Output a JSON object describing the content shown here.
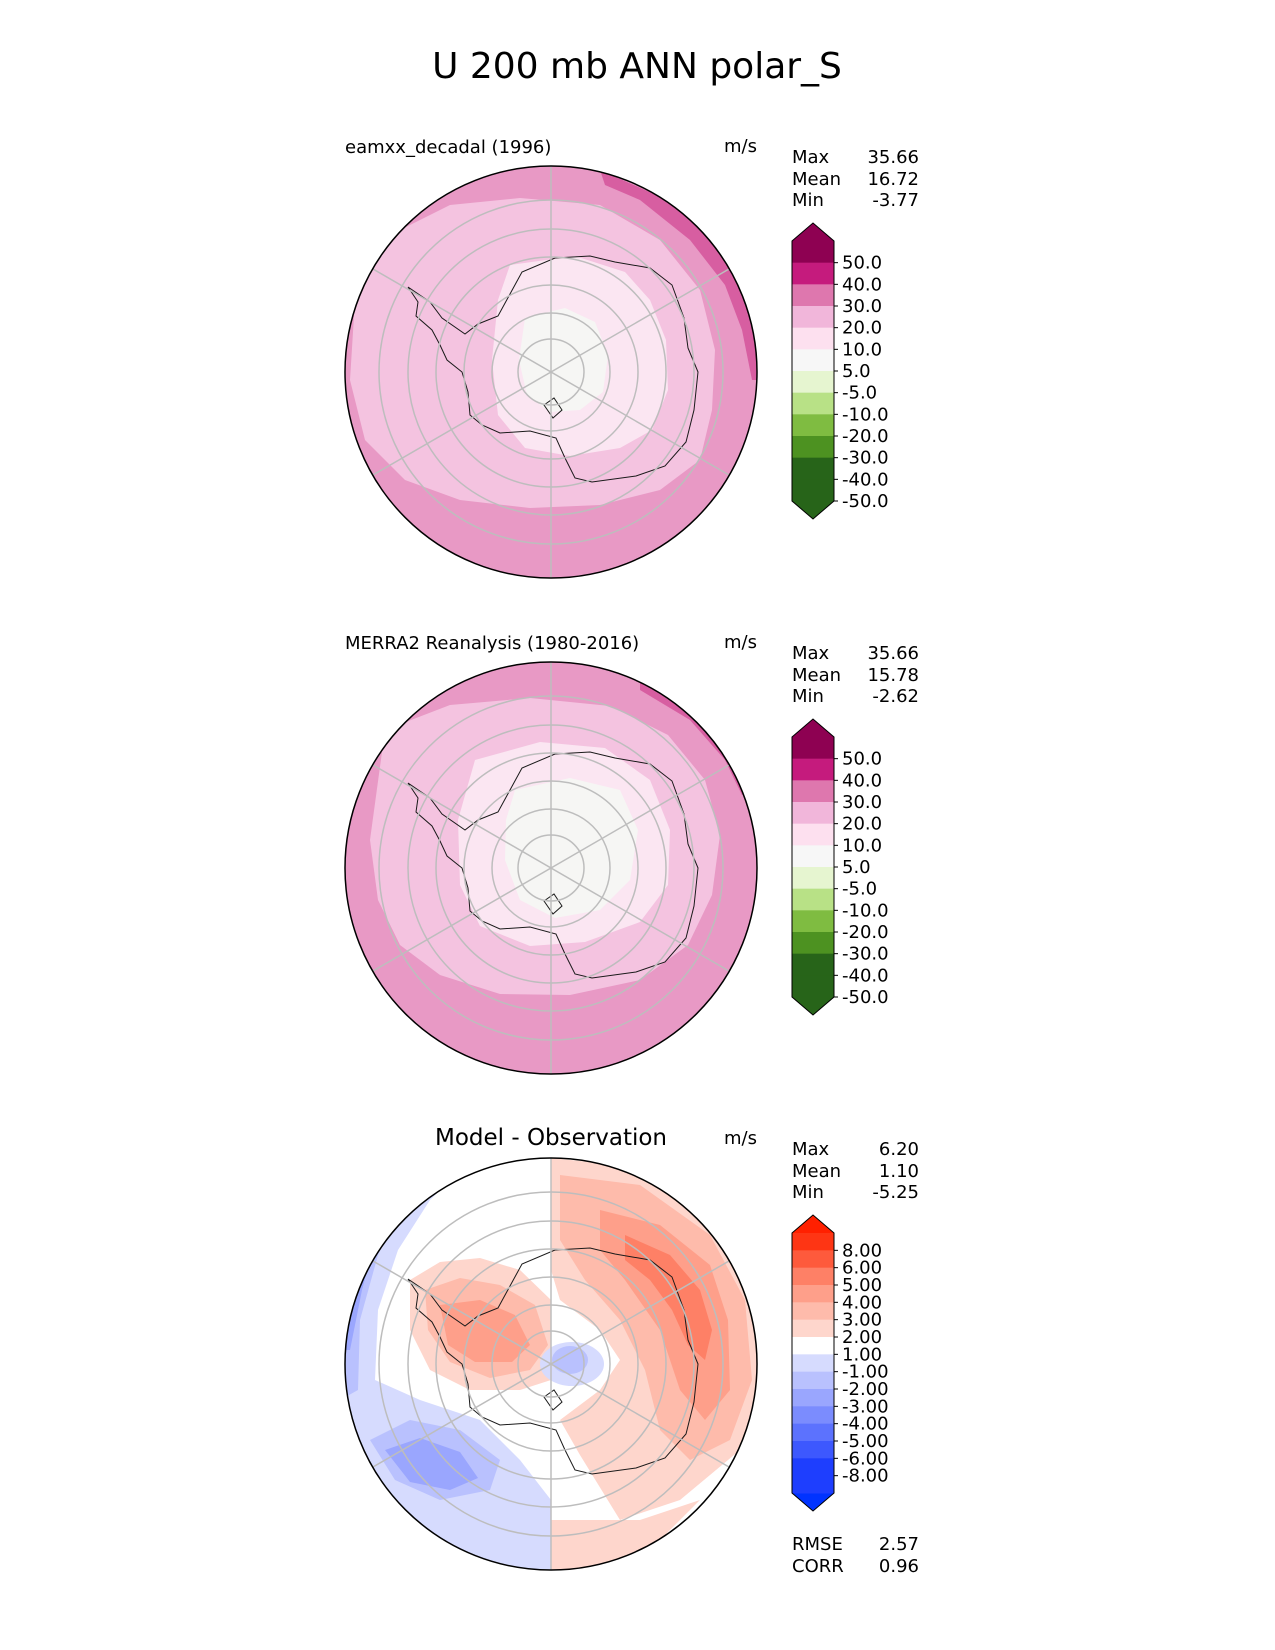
{
  "title": "U 200 mb ANN polar_S",
  "chart_data": [
    {
      "type": "heatmap",
      "projection": "south polar stereographic",
      "label": "eamxx_decadal (1996)",
      "units": "m/s",
      "stats": {
        "max_label": "Max",
        "max": "35.66",
        "mean_label": "Mean",
        "mean": "16.72",
        "min_label": "Min",
        "min": "-3.77"
      },
      "colorbar": {
        "levels": [
          "50.0",
          "40.0",
          "30.0",
          "20.0",
          "10.0",
          "5.0",
          "-5.0",
          "-10.0",
          "-20.0",
          "-30.0",
          "-40.0",
          "-50.0"
        ],
        "colors": [
          "#8e0152",
          "#c51b7d",
          "#de77ae",
          "#f1b6da",
          "#fde0ef",
          "#f7f7f7",
          "#e6f5d0",
          "#b8e186",
          "#7fbc41",
          "#4d9221",
          "#276419",
          "#276419"
        ],
        "over": "#8e0152",
        "under": "#276419"
      },
      "fields": [
        {
          "level_range": "20.0 to 30.0",
          "color": "#e899c5"
        },
        {
          "level_range": "30.0 to 40.0",
          "color": "#d75ea1"
        },
        {
          "level_range": "10.0 to 20.0",
          "color": "#f4c3e0"
        },
        {
          "level_range": "5.0 to 10.0",
          "color": "#fbe6f2"
        },
        {
          "level_range": "-5.0 to 5.0",
          "color": "#f6f6f4"
        }
      ]
    },
    {
      "type": "heatmap",
      "projection": "south polar stereographic",
      "label": "MERRA2 Reanalysis (1980-2016)",
      "units": "m/s",
      "stats": {
        "max_label": "Max",
        "max": "35.66",
        "mean_label": "Mean",
        "mean": "15.78",
        "min_label": "Min",
        "min": "-2.62"
      },
      "colorbar": {
        "levels": [
          "50.0",
          "40.0",
          "30.0",
          "20.0",
          "10.0",
          "5.0",
          "-5.0",
          "-10.0",
          "-20.0",
          "-30.0",
          "-40.0",
          "-50.0"
        ],
        "colors": [
          "#8e0152",
          "#c51b7d",
          "#de77ae",
          "#f1b6da",
          "#fde0ef",
          "#f7f7f7",
          "#e6f5d0",
          "#b8e186",
          "#7fbc41",
          "#4d9221",
          "#276419",
          "#276419"
        ],
        "over": "#8e0152",
        "under": "#276419"
      },
      "fields": [
        {
          "level_range": "20.0 to 30.0",
          "color": "#e899c5"
        },
        {
          "level_range": "30.0 to 40.0",
          "color": "#d75ea1"
        },
        {
          "level_range": "10.0 to 20.0",
          "color": "#f4c3e0"
        },
        {
          "level_range": "5.0 to 10.0",
          "color": "#fbe6f2"
        },
        {
          "level_range": "-5.0 to 5.0",
          "color": "#f6f6f4"
        }
      ]
    },
    {
      "type": "heatmap",
      "projection": "south polar stereographic",
      "label": "Model - Observation",
      "units": "m/s",
      "stats": {
        "max_label": "Max",
        "max": "6.20",
        "mean_label": "Mean",
        "mean": "1.10",
        "min_label": "Min",
        "min": "-5.25"
      },
      "extra_stats": {
        "rmse_label": "RMSE",
        "rmse": "2.57",
        "corr_label": "CORR",
        "corr": "0.96"
      },
      "colorbar": {
        "levels": [
          "8.00",
          "6.00",
          "5.00",
          "4.00",
          "3.00",
          "2.00",
          "1.00",
          "-1.00",
          "-2.00",
          "-3.00",
          "-4.00",
          "-5.00",
          "-6.00",
          "-8.00"
        ],
        "colors": [
          "#fe3514",
          "#fe5a3c",
          "#fe8066",
          "#fe9f8a",
          "#febbab",
          "#fed6cc",
          "#ffffff",
          "#d6dbfe",
          "#b9c1fe",
          "#9aa6fe",
          "#7b8cfe",
          "#5c72fe",
          "#3d58fe",
          "#1e3efe",
          "#1e3efe"
        ],
        "over": "#ff2000",
        "under": "#0033ff"
      },
      "fields": [
        {
          "level_range": "-1.00 to 1.00",
          "color": "#ffffff"
        },
        {
          "level_range": "1.00 to 2.00",
          "color": "#fed6cc"
        },
        {
          "level_range": "2.00 to 3.00",
          "color": "#febbab"
        },
        {
          "level_range": "3.00 to 4.00",
          "color": "#fe9f8a"
        },
        {
          "level_range": "4.00 to 5.00",
          "color": "#fe8066"
        },
        {
          "level_range": "-1.00 to -2.00",
          "color": "#d6dbfe"
        },
        {
          "level_range": "-2.00 to -3.00",
          "color": "#b9c1fe"
        },
        {
          "level_range": "-3.00 to -4.00",
          "color": "#9aa6fe"
        },
        {
          "level_range": "-4.00 to -5.00",
          "color": "#7b8cfe"
        },
        {
          "level_range": "-5.00 to -6.00",
          "color": "#5c72fe"
        }
      ]
    }
  ]
}
